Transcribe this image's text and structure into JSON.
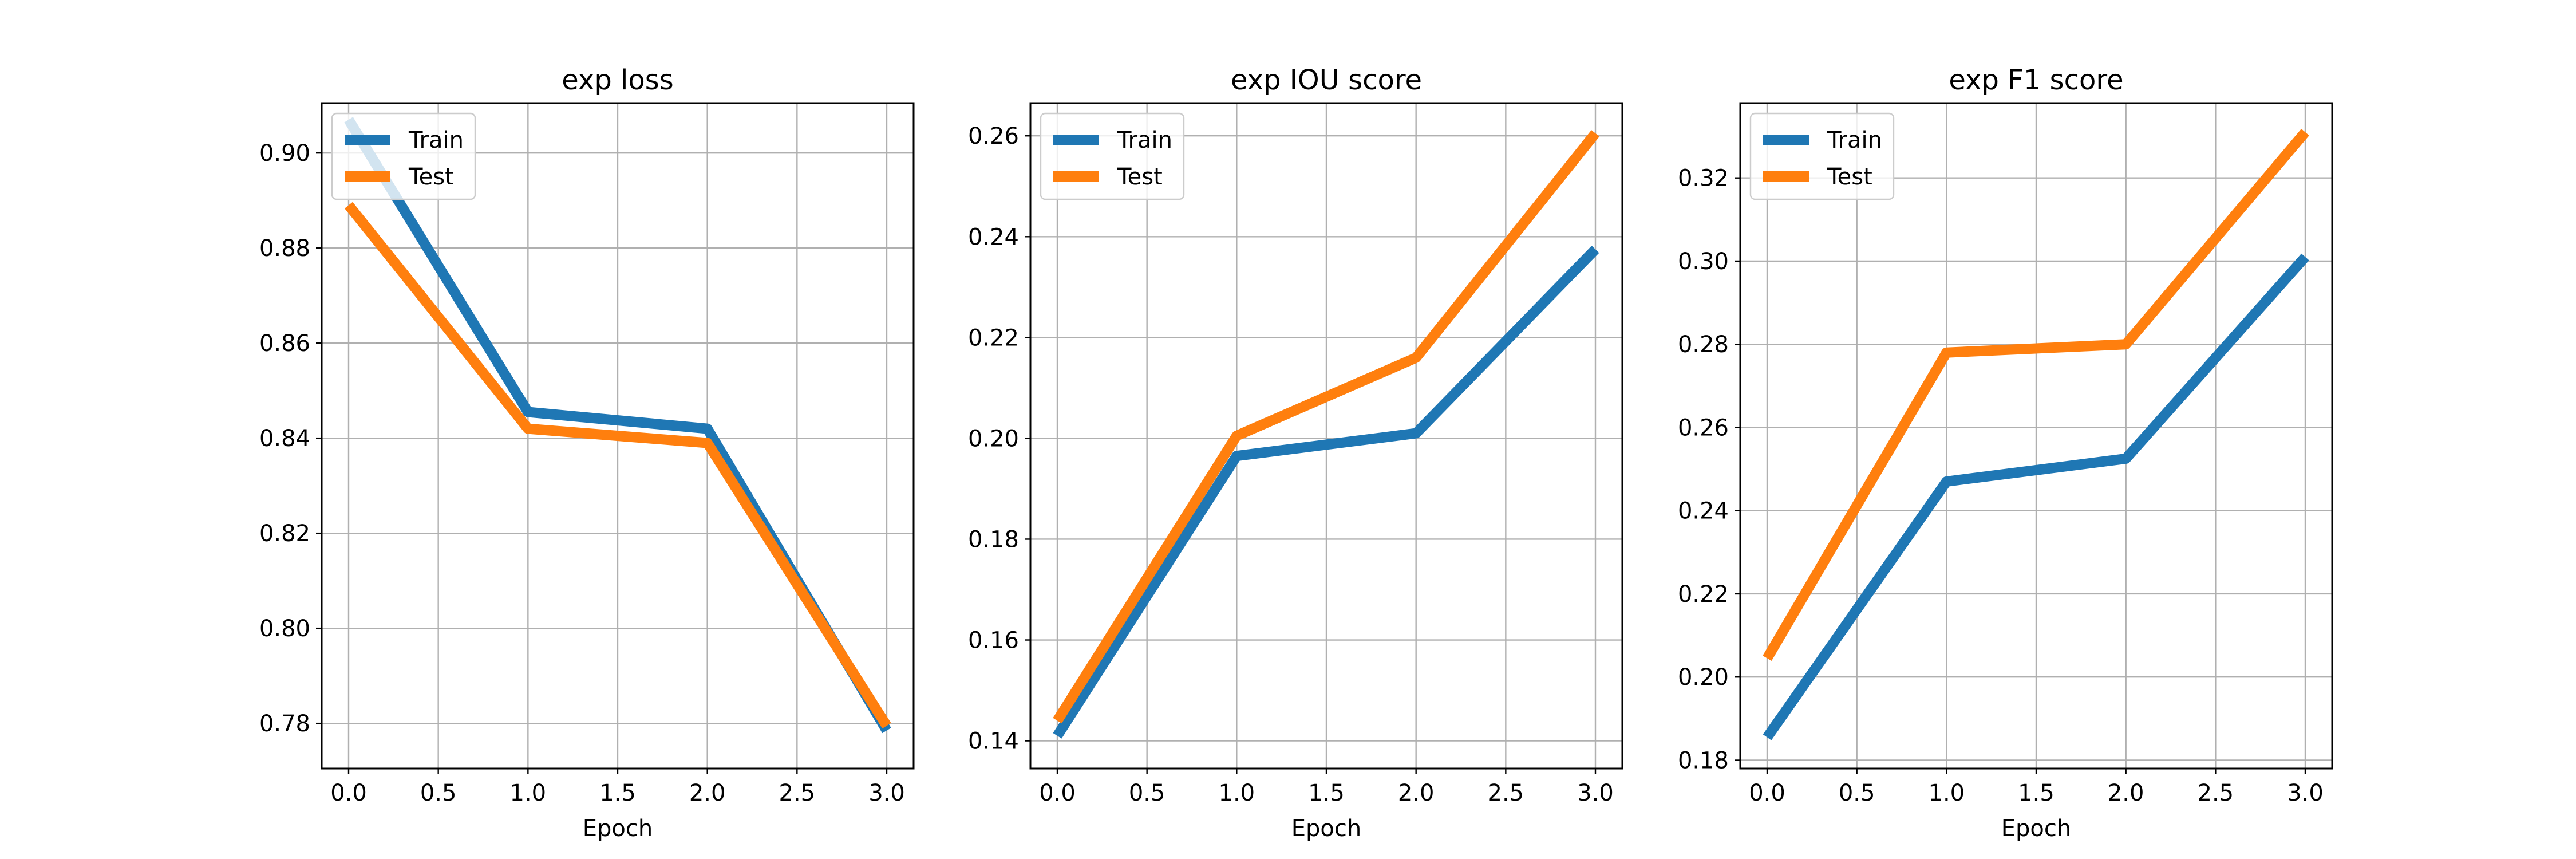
{
  "chart_data": [
    {
      "type": "line",
      "title": "exp loss",
      "xlabel": "Epoch",
      "ylabel": "",
      "x": [
        0,
        1,
        2,
        3
      ],
      "xlim": [
        -0.15,
        3.15
      ],
      "ylim": [
        0.7705,
        0.9105
      ],
      "xticks": [
        0.0,
        0.5,
        1.0,
        1.5,
        2.0,
        2.5,
        3.0
      ],
      "xtick_labels": [
        "0.0",
        "0.5",
        "1.0",
        "1.5",
        "2.0",
        "2.5",
        "3.0"
      ],
      "yticks": [
        0.78,
        0.8,
        0.82,
        0.84,
        0.86,
        0.88,
        0.9
      ],
      "ytick_labels": [
        "0.78",
        "0.80",
        "0.82",
        "0.84",
        "0.86",
        "0.88",
        "0.90"
      ],
      "grid": true,
      "legend": "upper-left",
      "series": [
        {
          "name": "Train",
          "color": "#1f77b4",
          "values": [
            0.907,
            0.8455,
            0.842,
            0.7785
          ]
        },
        {
          "name": "Test",
          "color": "#ff7f0e",
          "values": [
            0.889,
            0.842,
            0.839,
            0.7795
          ]
        }
      ]
    },
    {
      "type": "line",
      "title": "exp IOU score",
      "xlabel": "Epoch",
      "ylabel": "",
      "x": [
        0,
        1,
        2,
        3
      ],
      "xlim": [
        -0.15,
        3.15
      ],
      "ylim": [
        0.1345,
        0.2665
      ],
      "xticks": [
        0.0,
        0.5,
        1.0,
        1.5,
        2.0,
        2.5,
        3.0
      ],
      "xtick_labels": [
        "0.0",
        "0.5",
        "1.0",
        "1.5",
        "2.0",
        "2.5",
        "3.0"
      ],
      "yticks": [
        0.14,
        0.16,
        0.18,
        0.2,
        0.22,
        0.24,
        0.26
      ],
      "ytick_labels": [
        "0.14",
        "0.16",
        "0.18",
        "0.20",
        "0.22",
        "0.24",
        "0.26"
      ],
      "grid": true,
      "legend": "upper-left",
      "series": [
        {
          "name": "Train",
          "color": "#1f77b4",
          "values": [
            0.141,
            0.1965,
            0.201,
            0.2375
          ]
        },
        {
          "name": "Test",
          "color": "#ff7f0e",
          "values": [
            0.144,
            0.2005,
            0.216,
            0.2605
          ]
        }
      ]
    },
    {
      "type": "line",
      "title": "exp F1 score",
      "xlabel": "Epoch",
      "ylabel": "",
      "x": [
        0,
        1,
        2,
        3
      ],
      "xlim": [
        -0.15,
        3.15
      ],
      "ylim": [
        0.178,
        0.338
      ],
      "xticks": [
        0.0,
        0.5,
        1.0,
        1.5,
        2.0,
        2.5,
        3.0
      ],
      "xtick_labels": [
        "0.0",
        "0.5",
        "1.0",
        "1.5",
        "2.0",
        "2.5",
        "3.0"
      ],
      "yticks": [
        0.18,
        0.2,
        0.22,
        0.24,
        0.26,
        0.28,
        0.3,
        0.32
      ],
      "ytick_labels": [
        "0.18",
        "0.20",
        "0.22",
        "0.24",
        "0.26",
        "0.28",
        "0.30",
        "0.32"
      ],
      "grid": true,
      "legend": "upper-left",
      "series": [
        {
          "name": "Train",
          "color": "#1f77b4",
          "values": [
            0.1855,
            0.247,
            0.2525,
            0.301
          ]
        },
        {
          "name": "Test",
          "color": "#ff7f0e",
          "values": [
            0.2045,
            0.278,
            0.28,
            0.331
          ]
        }
      ]
    }
  ]
}
